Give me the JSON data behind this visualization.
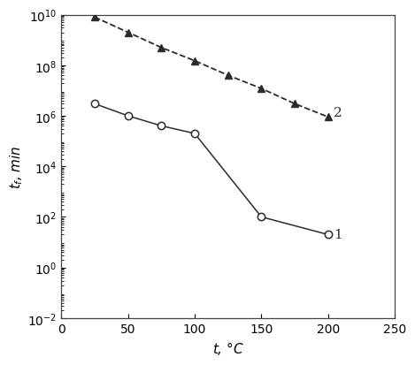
{
  "line1_x": [
    25,
    50,
    75,
    100,
    150,
    200
  ],
  "line1_y": [
    3000000.0,
    1000000.0,
    400000.0,
    200000.0,
    100,
    20
  ],
  "line2_x": [
    25,
    50,
    75,
    100,
    125,
    150,
    175,
    200
  ],
  "line2_y": [
    8000000000.0,
    2000000000.0,
    500000000.0,
    150000000.0,
    40000000.0,
    12000000.0,
    3000000.0,
    900000.0
  ],
  "xlabel": "t, °C",
  "ylabel": "t_f, min",
  "xlim": [
    0,
    250
  ],
  "ylim_log_min": -2,
  "ylim_log_max": 10,
  "label1": "1",
  "label2": "2",
  "bg_color": "#ffffff",
  "line_color": "#2b2b2b",
  "xticks": [
    0,
    50,
    100,
    150,
    200,
    250
  ],
  "yticks_major": [
    -2,
    0,
    2,
    4,
    6,
    8,
    10
  ]
}
